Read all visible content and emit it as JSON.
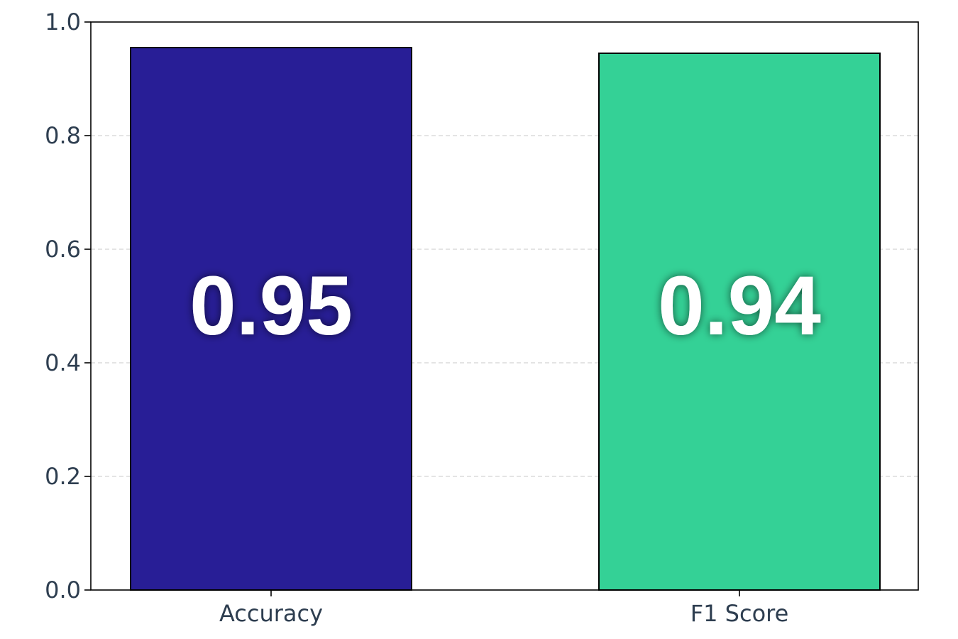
{
  "chart_data": {
    "type": "bar",
    "categories": [
      "Accuracy",
      "F1 Score"
    ],
    "values": [
      0.955,
      0.945
    ],
    "value_labels": [
      "0.95",
      "0.94"
    ],
    "bar_colors": [
      "#281e96",
      "#34d196"
    ],
    "bar_edge_color": "#000000",
    "title": "",
    "xlabel": "",
    "ylabel": "",
    "ylim": [
      0,
      1.0
    ],
    "yticks": [
      "0.0",
      "0.2",
      "0.4",
      "0.6",
      "0.8",
      "1.0"
    ],
    "grid": {
      "y": true,
      "x": false,
      "style": "dashed"
    },
    "legend": "none"
  }
}
